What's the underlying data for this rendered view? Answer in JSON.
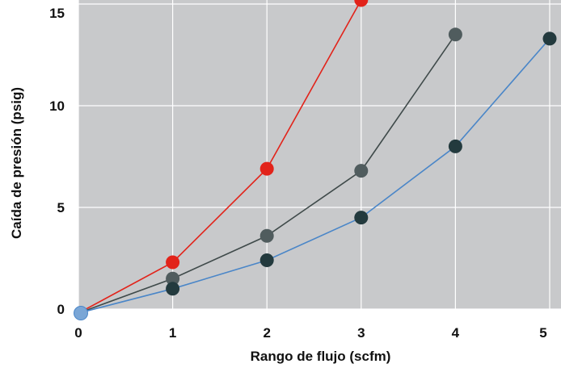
{
  "chart_data": {
    "type": "line",
    "title": "",
    "xlabel": "Rango de flujo (scfm)",
    "ylabel": "Caída de presión (psig)",
    "xlim": [
      0,
      5
    ],
    "ylim": [
      0,
      15
    ],
    "x_ticks": [
      "0",
      "1",
      "2",
      "3",
      "4",
      "5"
    ],
    "y_ticks": [
      "0",
      "5",
      "10",
      "15"
    ],
    "grid": true,
    "legend": "none",
    "plot_background": "#c8c9cb",
    "grid_color": "#ffffff",
    "series": [
      {
        "color": "#e2231a",
        "marker_color": "#e2231a",
        "points": [
          [
            0,
            -0.2
          ],
          [
            1,
            2.3
          ],
          [
            2,
            6.9
          ],
          [
            3,
            15.2
          ]
        ]
      },
      {
        "color": "#3f4a4a",
        "marker_color": "#505c5e",
        "points": [
          [
            0,
            -0.2
          ],
          [
            1,
            1.5
          ],
          [
            2,
            3.6
          ],
          [
            3,
            6.8
          ],
          [
            4,
            13.5
          ]
        ]
      },
      {
        "color": "#4a86c8",
        "marker_color": "#233a3e",
        "points": [
          [
            0,
            -0.2
          ],
          [
            1,
            1.0
          ],
          [
            2,
            2.4
          ],
          [
            3,
            4.5
          ],
          [
            4,
            8.0
          ],
          [
            5,
            13.3
          ]
        ]
      }
    ],
    "origin_marker_color": "#7aa6d6"
  }
}
